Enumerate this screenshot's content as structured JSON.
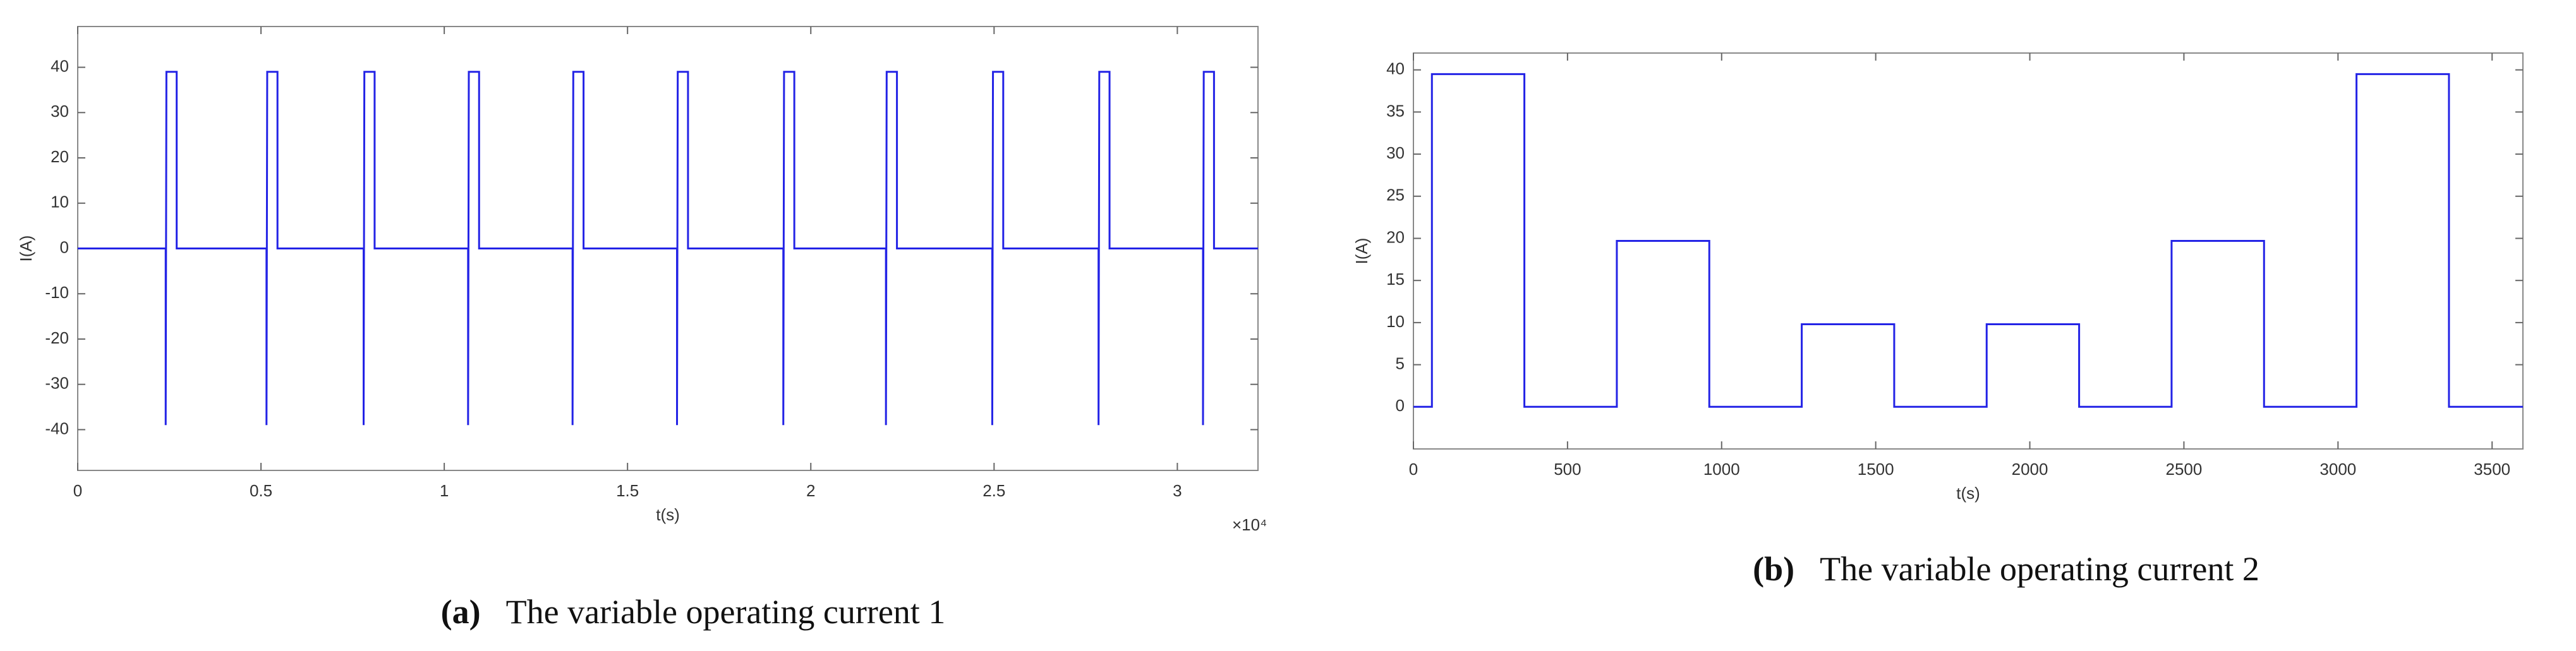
{
  "chart_data": [
    {
      "type": "line",
      "xlabel": "t(s)",
      "ylabel": "I(A)",
      "x_multiplier": "×10⁴",
      "caption_label": "(a)",
      "caption": "The variable operating current 1",
      "x": [
        0,
        0.24,
        0.24,
        0.242,
        0.27,
        0.27,
        0.515,
        0.515,
        0.517,
        0.545,
        0.545,
        0.78,
        0.78,
        0.782,
        0.81,
        0.81,
        1.065,
        1.065,
        1.067,
        1.095,
        1.095,
        1.35,
        1.35,
        1.352,
        1.38,
        1.38,
        1.635,
        1.635,
        1.637,
        1.665,
        1.665,
        1.925,
        1.925,
        1.927,
        1.955,
        1.955,
        2.205,
        2.205,
        2.207,
        2.235,
        2.235,
        2.495,
        2.495,
        2.497,
        2.525,
        2.525,
        2.785,
        2.785,
        2.787,
        2.815,
        2.815,
        3.07,
        3.07,
        3.072,
        3.1,
        3.1,
        3.22
      ],
      "series": [
        {
          "color": "#2323e6",
          "values": [
            0,
            0,
            -39,
            39,
            39,
            0,
            0,
            -39,
            39,
            39,
            0,
            0,
            -39,
            39,
            39,
            0,
            0,
            -39,
            39,
            39,
            0,
            0,
            -39,
            39,
            39,
            0,
            0,
            -39,
            39,
            39,
            0,
            0,
            -39,
            39,
            39,
            0,
            0,
            -39,
            39,
            39,
            0,
            0,
            -39,
            39,
            39,
            0,
            0,
            -39,
            39,
            39,
            0,
            0,
            -39,
            39,
            39,
            0,
            0
          ]
        }
      ],
      "xlim": [
        0,
        3.22
      ],
      "xticks": [
        0,
        0.5,
        1,
        1.5,
        2,
        2.5,
        3
      ],
      "ylim": [
        -49,
        49
      ],
      "yticks": [
        -40,
        -30,
        -20,
        -10,
        0,
        10,
        20,
        30,
        40
      ]
    },
    {
      "type": "line",
      "xlabel": "t(s)",
      "ylabel": "I(A)",
      "caption_label": "(b)",
      "caption": "The variable operating current 2",
      "x": [
        0,
        60,
        60,
        360,
        360,
        660,
        660,
        960,
        960,
        1260,
        1260,
        1560,
        1560,
        1860,
        1860,
        2160,
        2160,
        2460,
        2460,
        2760,
        2760,
        3060,
        3060,
        3360,
        3360,
        3600
      ],
      "series": [
        {
          "color": "#2323e6",
          "values": [
            0,
            0,
            39.5,
            39.5,
            0,
            0,
            19.7,
            19.7,
            0,
            0,
            9.8,
            9.8,
            0,
            0,
            9.8,
            9.8,
            0,
            0,
            19.7,
            19.7,
            0,
            0,
            39.5,
            39.5,
            0,
            0
          ]
        }
      ],
      "xlim": [
        0,
        3600
      ],
      "xticks": [
        0,
        500,
        1000,
        1500,
        2000,
        2500,
        3000,
        3500
      ],
      "ylim": [
        -5,
        42
      ],
      "yticks": [
        0,
        5,
        10,
        15,
        20,
        25,
        30,
        35,
        40
      ]
    }
  ]
}
